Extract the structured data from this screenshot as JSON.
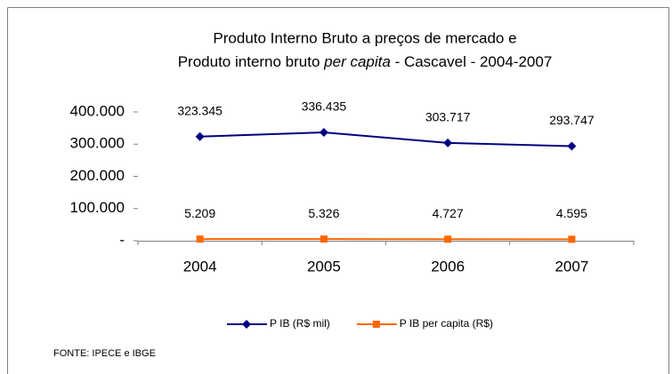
{
  "chart_data": {
    "type": "line",
    "title": [
      "Produto Interno Bruto a preços de mercado  e",
      "Produto interno bruto",
      "per capita",
      " - Cascavel - 2004-2007"
    ],
    "categories": [
      "2004",
      "2005",
      "2006",
      "2007"
    ],
    "series": [
      {
        "name": "P IB (R$ mil)",
        "color": "#000080",
        "marker": "diamond",
        "values": [
          323345,
          336435,
          303717,
          293747
        ],
        "value_labels": [
          "323.345",
          "336.435",
          "303.717",
          "293.747"
        ]
      },
      {
        "name": "P IB per capita (R$)",
        "color": "#ff6600",
        "marker": "square",
        "values": [
          5209,
          5326,
          4727,
          4595
        ],
        "value_labels": [
          "5.209",
          "5.326",
          "4.727",
          "4.595"
        ]
      }
    ],
    "ylim": [
      0,
      400000
    ],
    "yticks": [
      {
        "value": 0,
        "label": "-"
      },
      {
        "value": 100000,
        "label": "100.000"
      },
      {
        "value": 200000,
        "label": "200.000"
      },
      {
        "value": 300000,
        "label": "300.000"
      },
      {
        "value": 400000,
        "label": "400.000"
      }
    ],
    "legend": "bottom",
    "source": "FONTE: IPECE e IBGE"
  }
}
